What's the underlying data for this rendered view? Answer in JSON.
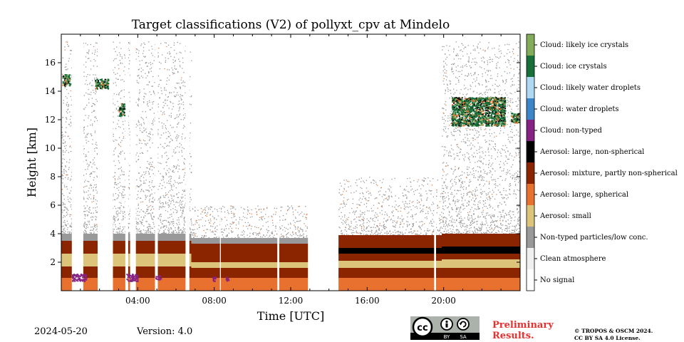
{
  "title": "Target classifications (V2) of pollyxt_cpv at Mindelo",
  "footer": {
    "date": "2024-05-20",
    "version": "Version: 4.0",
    "preliminary_line1": "Preliminary",
    "preliminary_line2": "Results.",
    "copyright_line1": "© TROPOS & OSCM 2024.",
    "copyright_line2": "CC BY SA 4.0 License.",
    "cc_badge": {
      "cc": "cc",
      "by": "BY",
      "sa": "SA"
    }
  },
  "chart_data": {
    "type": "heatmap",
    "title": "Target classifications (V2) of pollyxt_cpv at Mindelo",
    "xlabel": "Time [UTC]",
    "ylabel": "Height [km]",
    "xlim_hours": [
      0,
      24
    ],
    "ylim_km": [
      0,
      18
    ],
    "x_ticks": [
      {
        "hour": 4,
        "label": "04:00"
      },
      {
        "hour": 8,
        "label": "08:00"
      },
      {
        "hour": 12,
        "label": "12:00"
      },
      {
        "hour": 16,
        "label": "16:00"
      },
      {
        "hour": 20,
        "label": "20:00"
      }
    ],
    "y_ticks": [
      2,
      4,
      6,
      8,
      10,
      12,
      14,
      16
    ],
    "grid": false,
    "legend": "right colorbar",
    "classes": [
      {
        "label": "No signal",
        "color": "#ffffff"
      },
      {
        "label": "Clean atmosphere",
        "color": "#f0f0f0"
      },
      {
        "label": "Non-typed particles/low conc.",
        "color": "#999999"
      },
      {
        "label": "Aerosol: small",
        "color": "#dcc57a"
      },
      {
        "label": "Aerosol: large, spherical",
        "color": "#e8712f"
      },
      {
        "label": "Aerosol: mixture, partly non-spherical",
        "color": "#8b2500"
      },
      {
        "label": "Aerosol: large, non-spherical",
        "color": "#000000"
      },
      {
        "label": "Cloud: non-typed",
        "color": "#862382"
      },
      {
        "label": "Cloud: water droplets",
        "color": "#3c85c8"
      },
      {
        "label": "Cloud: likely water droplets",
        "color": "#afd8f2"
      },
      {
        "label": "Cloud: ice crystals",
        "color": "#176f3a"
      },
      {
        "label": "Cloud: likely ice crystals",
        "color": "#82ab5a"
      }
    ],
    "profile_segments": [
      {
        "start_h": 0.0,
        "end_h": 6.8,
        "layers": [
          [
            0.0,
            0.9,
            4
          ],
          [
            0.9,
            1.7,
            5
          ],
          [
            1.7,
            2.6,
            3
          ],
          [
            2.6,
            3.5,
            5
          ],
          [
            3.5,
            4.0,
            2
          ]
        ],
        "noise_top_km": 17.5
      },
      {
        "start_h": 6.8,
        "end_h": 12.9,
        "layers": [
          [
            0.0,
            0.9,
            4
          ],
          [
            0.9,
            1.6,
            5
          ],
          [
            1.6,
            2.0,
            3
          ],
          [
            2.0,
            3.3,
            5
          ],
          [
            3.3,
            3.7,
            2
          ]
        ],
        "noise_top_km": 6.0
      },
      {
        "start_h": 12.9,
        "end_h": 14.5,
        "layers": [],
        "noise_top_km": 0
      },
      {
        "start_h": 14.5,
        "end_h": 19.9,
        "layers": [
          [
            0.0,
            0.9,
            4
          ],
          [
            0.9,
            1.6,
            5
          ],
          [
            1.6,
            2.1,
            3
          ],
          [
            2.1,
            2.6,
            5
          ],
          [
            2.6,
            3.0,
            6
          ],
          [
            3.0,
            3.9,
            5
          ]
        ],
        "noise_top_km": 8.0
      },
      {
        "start_h": 19.9,
        "end_h": 24.0,
        "layers": [
          [
            0.0,
            0.9,
            4
          ],
          [
            0.9,
            1.6,
            5
          ],
          [
            1.6,
            2.2,
            3
          ],
          [
            2.2,
            2.6,
            5
          ],
          [
            2.6,
            3.1,
            6
          ],
          [
            3.1,
            4.0,
            5
          ]
        ],
        "noise_top_km": 17.5
      }
    ],
    "no_signal_columns_h": [
      [
        0.55,
        1.15
      ],
      [
        1.9,
        2.7
      ],
      [
        3.35,
        3.5
      ],
      [
        3.6,
        3.9
      ],
      [
        4.9,
        5.05
      ],
      [
        6.5,
        6.7
      ],
      [
        8.3,
        8.35
      ],
      [
        11.3,
        11.4
      ],
      [
        19.5,
        19.6
      ]
    ],
    "cloud_features": [
      {
        "start_h": 0.05,
        "end_h": 0.45,
        "base_km": 14.4,
        "top_km": 15.2,
        "class": "Cloud: ice crystals"
      },
      {
        "start_h": 1.75,
        "end_h": 2.45,
        "base_km": 14.2,
        "top_km": 14.9,
        "class": "Cloud: ice crystals"
      },
      {
        "start_h": 3.0,
        "end_h": 3.3,
        "base_km": 12.3,
        "top_km": 13.2,
        "class": "Cloud: ice crystals"
      },
      {
        "start_h": 20.4,
        "end_h": 23.2,
        "base_km": 11.6,
        "top_km": 13.6,
        "class": "Cloud: ice crystals"
      },
      {
        "start_h": 23.5,
        "end_h": 24.0,
        "base_km": 11.8,
        "top_km": 12.5,
        "class": "Cloud: ice crystals"
      },
      {
        "start_h": 0.55,
        "end_h": 1.3,
        "base_km": 0.7,
        "top_km": 1.2,
        "class": "Cloud: non-typed"
      },
      {
        "start_h": 3.4,
        "end_h": 4.0,
        "base_km": 0.7,
        "top_km": 1.2,
        "class": "Cloud: non-typed"
      },
      {
        "start_h": 4.9,
        "end_h": 5.2,
        "base_km": 0.8,
        "top_km": 1.1,
        "class": "Cloud: non-typed"
      },
      {
        "start_h": 7.9,
        "end_h": 8.1,
        "base_km": 0.7,
        "top_km": 1.0,
        "class": "Cloud: non-typed"
      },
      {
        "start_h": 8.6,
        "end_h": 8.8,
        "base_km": 0.7,
        "top_km": 1.0,
        "class": "Cloud: non-typed"
      }
    ]
  }
}
